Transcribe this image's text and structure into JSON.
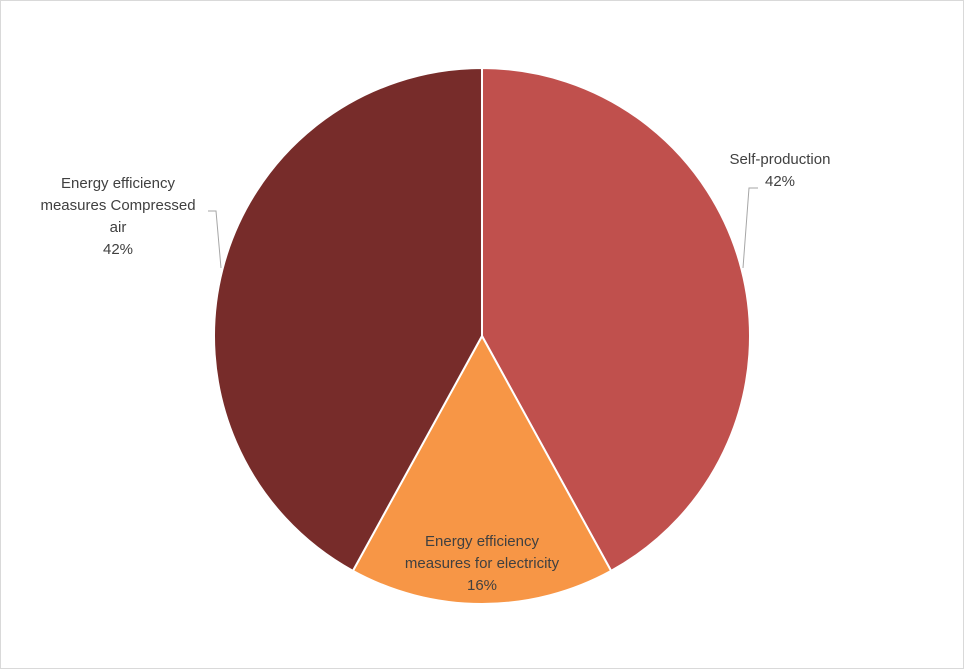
{
  "chart_data": {
    "type": "pie",
    "title": "",
    "slices": [
      {
        "label_lines": [
          "Self-production"
        ],
        "value_label": "42%",
        "value": 42,
        "color": "#c0504d"
      },
      {
        "label_lines": [
          "Energy efficiency",
          "measures for electricity"
        ],
        "value_label": "16%",
        "value": 16,
        "color": "#f79646"
      },
      {
        "label_lines": [
          "Energy efficiency",
          "measures Compressed",
          "air"
        ],
        "value_label": "42%",
        "value": 42,
        "color": "#772c2a"
      }
    ],
    "start_angle_deg": 0,
    "direction": "clockwise",
    "slice_border_color": "#ffffff",
    "leader_line_color": "#a6a6a6",
    "legend": "none"
  }
}
